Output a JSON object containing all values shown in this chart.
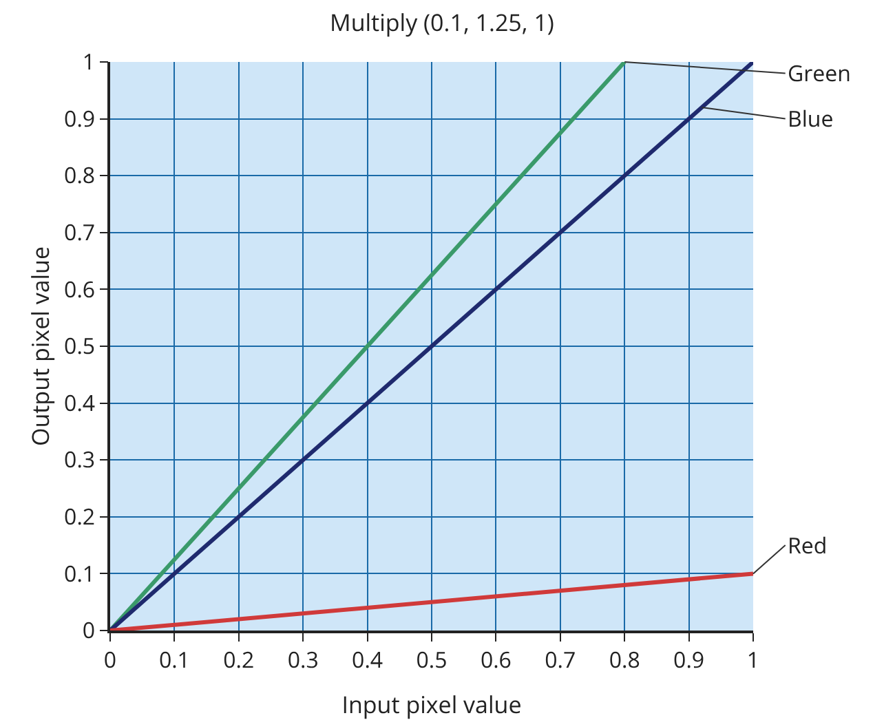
{
  "chart_data": {
    "type": "line",
    "title": "Multiply (0.1, 1.25, 1)",
    "xlabel": "Input pixel value",
    "ylabel": "Output pixel value",
    "series": [
      {
        "name": "Green",
        "color": "#3a9a6a",
        "x": [
          0,
          0.8
        ],
        "values": [
          0,
          1
        ]
      },
      {
        "name": "Blue",
        "color": "#1f2a6e",
        "x": [
          0,
          1
        ],
        "values": [
          0,
          1
        ]
      },
      {
        "name": "Red",
        "color": "#d03a3a",
        "x": [
          0,
          1
        ],
        "values": [
          0,
          0.1
        ]
      }
    ],
    "xlim": [
      0,
      1
    ],
    "ylim": [
      0,
      1
    ],
    "xticks": [
      0,
      0.1,
      0.2,
      0.3,
      0.4,
      0.5,
      0.6,
      0.7,
      0.8,
      0.9,
      1
    ],
    "yticks": [
      0,
      0.1,
      0.2,
      0.3,
      0.4,
      0.5,
      0.6,
      0.7,
      0.8,
      0.9,
      1
    ],
    "grid": true,
    "legend": false,
    "marker": "none",
    "line_style": "solid"
  }
}
